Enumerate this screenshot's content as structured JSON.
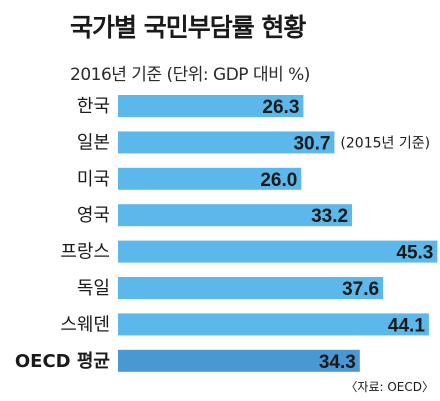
{
  "chart_data": {
    "type": "bar",
    "orientation": "horizontal",
    "title": "국가별 국민부담률 현황",
    "subtitle": "2016년 기준 (단위: GDP 대비 %)",
    "categories": [
      "한국",
      "일본",
      "미국",
      "영국",
      "프랑스",
      "독일",
      "스웨덴",
      "OECD 평균"
    ],
    "values": [
      26.3,
      30.7,
      26.0,
      33.2,
      45.3,
      37.6,
      44.1,
      34.3
    ],
    "value_labels": [
      "26.3",
      "30.7",
      "26.0",
      "33.2",
      "45.3",
      "37.6",
      "44.1",
      "34.3"
    ],
    "annotations": [
      {
        "category": "일본",
        "text": "(2015년 기준)"
      }
    ],
    "highlight_category": "OECD 평균",
    "bar_color": "#5cb8ea",
    "highlight_color": "#4a98d3",
    "source": "〈자료: OECD〉"
  }
}
